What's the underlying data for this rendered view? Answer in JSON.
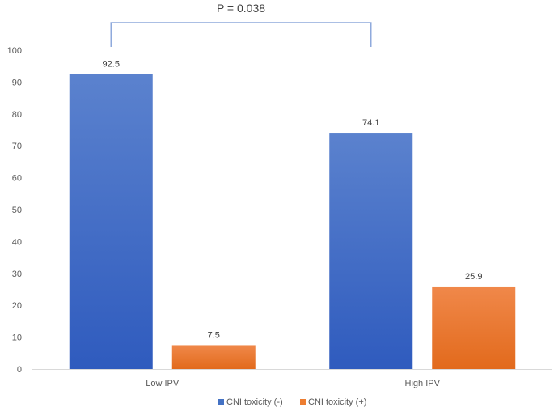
{
  "chart_data": {
    "type": "bar",
    "categories": [
      "Low IPV",
      "High IPV"
    ],
    "series": [
      {
        "name": "CNI toxicity (-)",
        "values": [
          92.5,
          74.1
        ],
        "color": "#4472C4"
      },
      {
        "name": "CNI toxicity (+)",
        "values": [
          7.5,
          25.9
        ],
        "color": "#ED7D31"
      }
    ],
    "data_labels": [
      [
        "92.5",
        "74.1"
      ],
      [
        "7.5",
        "25.9"
      ]
    ],
    "ylim": [
      0,
      100
    ],
    "yticks": [
      0,
      10,
      20,
      30,
      40,
      50,
      60,
      70,
      80,
      90,
      100
    ],
    "grid": false,
    "legend_position": "bottom",
    "annotation": {
      "text": "P = 0.038",
      "bracket_color": "#8FAADC"
    }
  }
}
